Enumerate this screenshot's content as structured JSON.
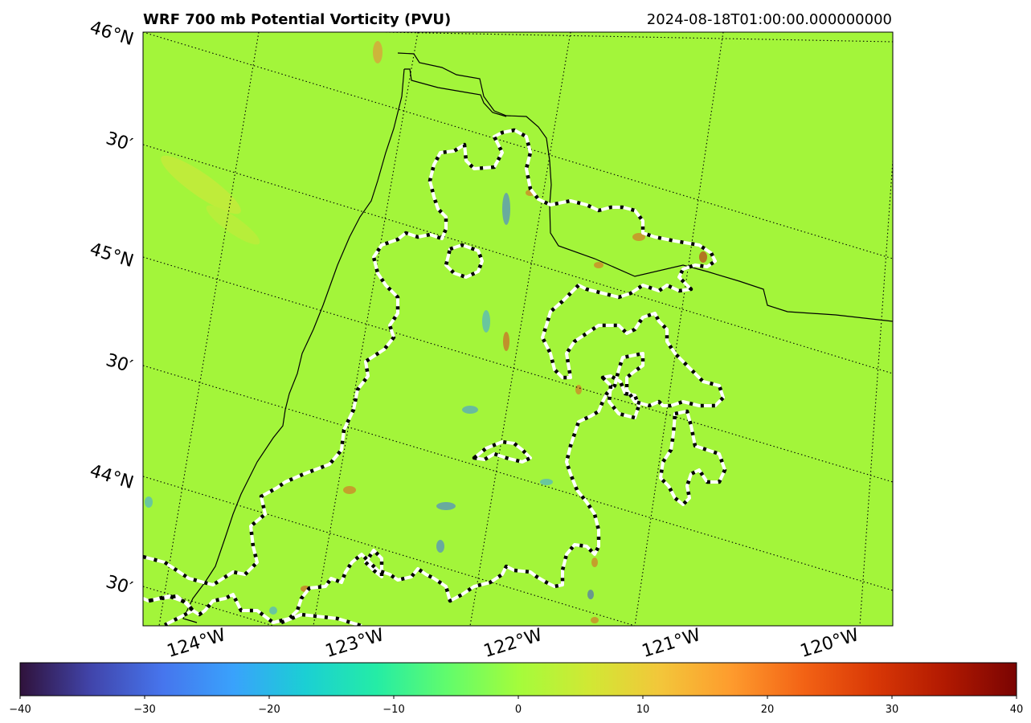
{
  "title_left": "WRF 700 mb Potential Vorticity (PVU)",
  "title_right": "2024-08-18T01:00:00.000000000",
  "lat_labels": [
    {
      "text": "46°N",
      "lat": 46.0
    },
    {
      "text": "30′",
      "lat": 45.5
    },
    {
      "text": "45°N",
      "lat": 45.0
    },
    {
      "text": "30′",
      "lat": 44.5
    },
    {
      "text": "44°N",
      "lat": 44.0
    },
    {
      "text": "30′",
      "lat": 43.5
    }
  ],
  "lon_labels": [
    {
      "text": "124°W",
      "lon": -124
    },
    {
      "text": "123°W",
      "lon": -123
    },
    {
      "text": "122°W",
      "lon": -122
    },
    {
      "text": "121°W",
      "lon": -121
    },
    {
      "text": "120°W",
      "lon": -120
    }
  ],
  "colorbar": {
    "min": -40,
    "max": 40,
    "ticks": [
      "−40",
      "−30",
      "−20",
      "−10",
      "0",
      "10",
      "20",
      "30",
      "40"
    ],
    "tick_values": [
      -40,
      -30,
      -20,
      -10,
      0,
      10,
      20,
      30,
      40
    ],
    "colors": [
      "#30123b",
      "#4145ab",
      "#4675ed",
      "#39a2fc",
      "#1bcfd4",
      "#24eca6",
      "#61fc6c",
      "#a4fc3b",
      "#d1e834",
      "#f3c63a",
      "#fe9b2d",
      "#f36315",
      "#d93806",
      "#b11901",
      "#7a0402"
    ]
  },
  "colors": {
    "background_field": "#a3f53a",
    "mask_outline_dark": "#000000",
    "mask_outline_light": "#ffffff"
  }
}
